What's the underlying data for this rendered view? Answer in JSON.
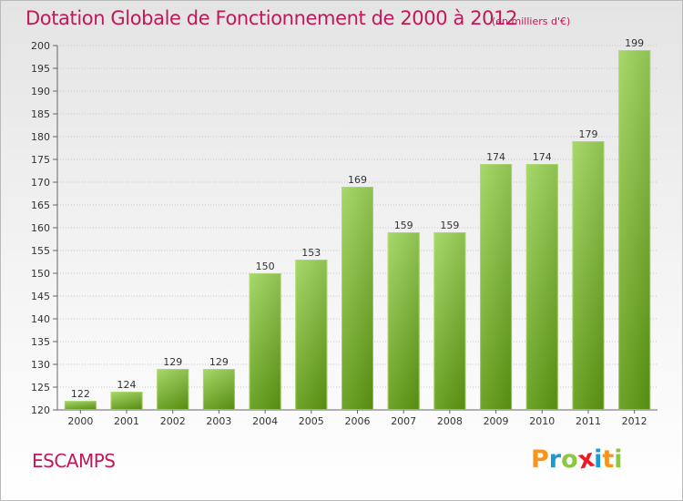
{
  "header": {
    "title": "Dotation Globale de Fonctionnement de 2000 à 2012",
    "unit_note": "(en milliers d'€)"
  },
  "footer": {
    "commune_name": "ESCAMPS",
    "logo": {
      "letters": [
        "P",
        "r",
        "o",
        "x",
        "i",
        "t",
        "i"
      ],
      "colors": [
        "#f7941d",
        "#1b9ad6",
        "#8dc63f",
        "#ec1c24",
        "#1b9ad6",
        "#f7941d",
        "#8dc63f"
      ]
    }
  },
  "colors": {
    "accent": "#c2185b",
    "bar_top": "#9ed45a",
    "bar_bottom": "#5e9a12"
  },
  "chart_data": {
    "type": "bar",
    "categories": [
      "2000",
      "2001",
      "2002",
      "2003",
      "2004",
      "2005",
      "2006",
      "2007",
      "2008",
      "2009",
      "2010",
      "2011",
      "2012"
    ],
    "values": [
      122,
      124,
      129,
      129,
      150,
      153,
      169,
      159,
      159,
      174,
      174,
      179,
      199
    ],
    "data_labels": [
      "122",
      "124",
      "129",
      "129",
      "150",
      "153",
      "169",
      "159",
      "159",
      "174",
      "174",
      "179",
      "199"
    ],
    "ylim": [
      120,
      200
    ],
    "yticks": [
      120,
      125,
      130,
      135,
      140,
      145,
      150,
      155,
      160,
      165,
      170,
      175,
      180,
      185,
      190,
      195,
      200
    ],
    "grid": "horizontal dotted",
    "legend": "none"
  }
}
